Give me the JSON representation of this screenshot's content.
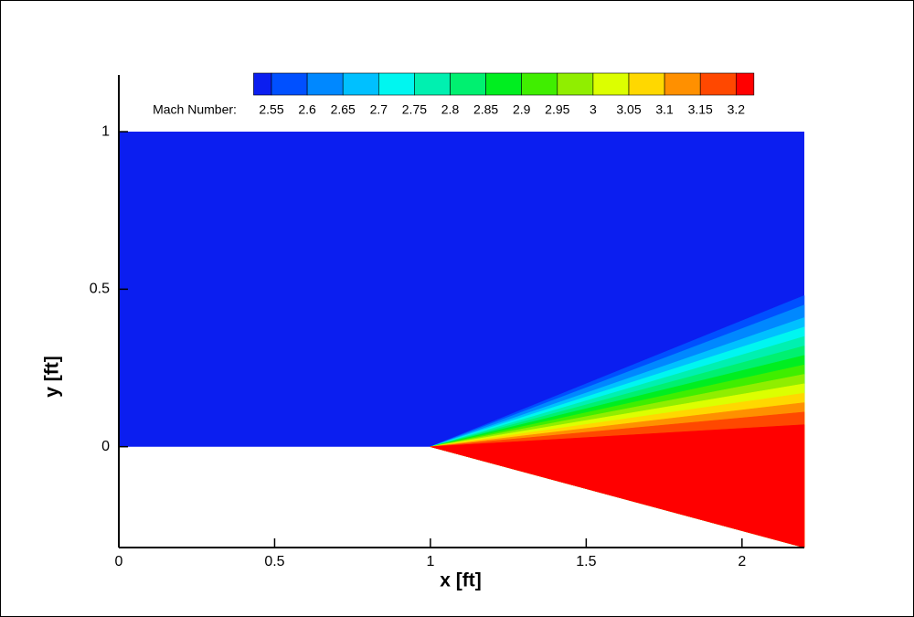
{
  "chart_data": {
    "type": "contour",
    "xlabel": "x [ft]",
    "ylabel": "y [ft]",
    "xlim": [
      0,
      2.2
    ],
    "ylim": [
      -0.32,
      1.18
    ],
    "xticks": [
      0,
      0.5,
      1,
      1.5,
      2
    ],
    "yticks": [
      0,
      0.5,
      1
    ],
    "legend_title": "Mach Number:",
    "levels": [
      2.55,
      2.6,
      2.65,
      2.7,
      2.75,
      2.8,
      2.85,
      2.9,
      2.95,
      3,
      3.05,
      3.1,
      3.15,
      3.2
    ],
    "colors": [
      "#0b1ef0",
      "#0050ff",
      "#0088ff",
      "#00c0ff",
      "#00f6f0",
      "#00f0b0",
      "#00f070",
      "#00ee20",
      "#40ee00",
      "#90ee00",
      "#dcff00",
      "#ffd800",
      "#ff9000",
      "#ff4800",
      "#ff0000"
    ],
    "domain": {
      "x": [
        0,
        1,
        2.2,
        2.2,
        0
      ],
      "y": [
        0,
        0,
        -0.32,
        1,
        1
      ]
    },
    "fan": {
      "origin": [
        1,
        0
      ],
      "edge_x": 2.2,
      "edge_y": [
        0.48,
        0.45,
        0.41,
        0.38,
        0.35,
        0.32,
        0.29,
        0.26,
        0.23,
        0.2,
        0.17,
        0.14,
        0.11,
        0.07
      ]
    }
  }
}
